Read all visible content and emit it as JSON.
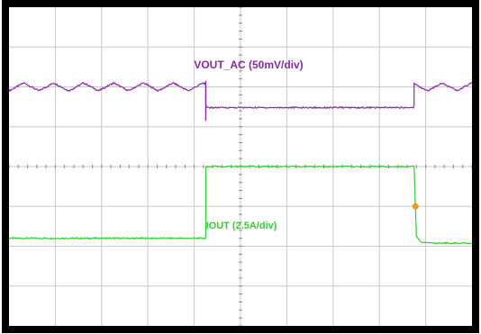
{
  "chart_data": {
    "type": "line",
    "x_divisions": 10,
    "y_divisions": 8,
    "grid": true,
    "background": "#ffffff",
    "grid_color": "#c8c8c8",
    "frame_color": "#000000",
    "series": [
      {
        "name": "VOUT_AC (50mV/div)",
        "color": "#8a2aa0",
        "points": [
          [
            0,
            6.0
          ],
          [
            4.25,
            6.0
          ],
          [
            4.25,
            5.48
          ],
          [
            8.75,
            5.48
          ],
          [
            8.75,
            6.0
          ],
          [
            10,
            6.0
          ]
        ],
        "ripple_div": 0.2,
        "ripple_segments": [
          [
            0,
            4.25
          ],
          [
            8.75,
            10
          ]
        ],
        "spike": {
          "x": 4.25,
          "min": 5.15,
          "max": 6.15
        }
      },
      {
        "name": "IOUT (2.5A/div)",
        "color": "#33cc33",
        "points": [
          [
            0,
            2.2
          ],
          [
            4.18,
            2.2
          ],
          [
            4.25,
            2.2
          ],
          [
            4.25,
            4.0
          ],
          [
            8.75,
            4.0
          ],
          [
            8.8,
            2.25
          ],
          [
            8.9,
            2.1
          ],
          [
            9.2,
            2.08
          ],
          [
            10,
            2.08
          ]
        ]
      }
    ],
    "trigger_marker": {
      "x": 8.78,
      "y": 3.0,
      "color": "#f39a1e"
    },
    "labels": {
      "vout": "VOUT_AC (50mV/div)",
      "iout": "IOUT (2.5A/div)"
    }
  }
}
